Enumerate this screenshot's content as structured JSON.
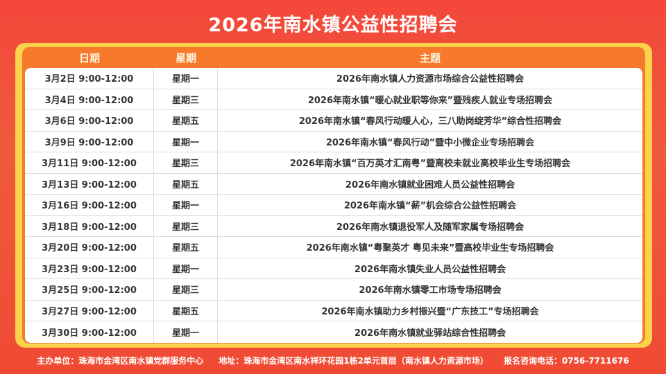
{
  "title": "2026年南水镇公益性招聘会",
  "headers": {
    "date": "日期",
    "weekday": "星期",
    "theme": "主题"
  },
  "rows": [
    {
      "date": "3月2日 9:00-12:00",
      "weekday": "星期一",
      "theme": "2026年南水镇人力资源市场综合公益性招聘会"
    },
    {
      "date": "3月4日 9:00-12:00",
      "weekday": "星期三",
      "theme": "2026年南水镇“暖心就业职等你来”暨残疾人就业专场招聘会"
    },
    {
      "date": "3月6日 9:00-12:00",
      "weekday": "星期五",
      "theme": "2026年南水镇“春风行动暖人心，三八助岗绽芳华”综合性招聘会"
    },
    {
      "date": "3月9日 9:00-12:00",
      "weekday": "星期一",
      "theme": "2026年南水镇“春风行动”暨中小微企业专场招聘会"
    },
    {
      "date": "3月11日 9:00-12:00",
      "weekday": "星期三",
      "theme": "2026年南水镇“百万英才汇南粤”暨离校未就业高校毕业生专场招聘会"
    },
    {
      "date": "3月13日 9:00-12:00",
      "weekday": "星期五",
      "theme": "2026年南水镇就业困难人员公益性招聘会"
    },
    {
      "date": "3月16日 9:00-12:00",
      "weekday": "星期一",
      "theme": "2026年南水镇“薪”机会综合公益性招聘会"
    },
    {
      "date": "3月18日 9:00-12:00",
      "weekday": "星期三",
      "theme": "2026年南水镇退役军人及随军家属专场招聘会"
    },
    {
      "date": "3月20日 9:00-12:00",
      "weekday": "星期五",
      "theme": "2026年南水镇“粤聚英才 粤见未来”暨高校毕业生专场招聘会"
    },
    {
      "date": "3月23日 9:00-12:00",
      "weekday": "星期一",
      "theme": "2026年南水镇失业人员公益性招聘会"
    },
    {
      "date": "3月25日 9:00-12:00",
      "weekday": "星期三",
      "theme": "2026年南水镇零工市场专场招聘会"
    },
    {
      "date": "3月27日 9:00-12:00",
      "weekday": "星期五",
      "theme": "2026年南水镇助力乡村振兴暨“广东技工”专场招聘会"
    },
    {
      "date": "3月30日 9:00-12:00",
      "weekday": "星期一",
      "theme": "2026年南水镇就业驿站综合性招聘会"
    }
  ],
  "footer": {
    "organizer": "主办单位：珠海市金湾区南水镇党群服务中心",
    "address": "地址：珠海市金湾区南水祥环花园1栋2单元首层（南水镇人力资源市场）",
    "phone": "报名咨询电话：0756-7711676"
  },
  "colors": {
    "background": "#f04a34",
    "frame": "#fbd34a",
    "header": "#f77a2c"
  }
}
